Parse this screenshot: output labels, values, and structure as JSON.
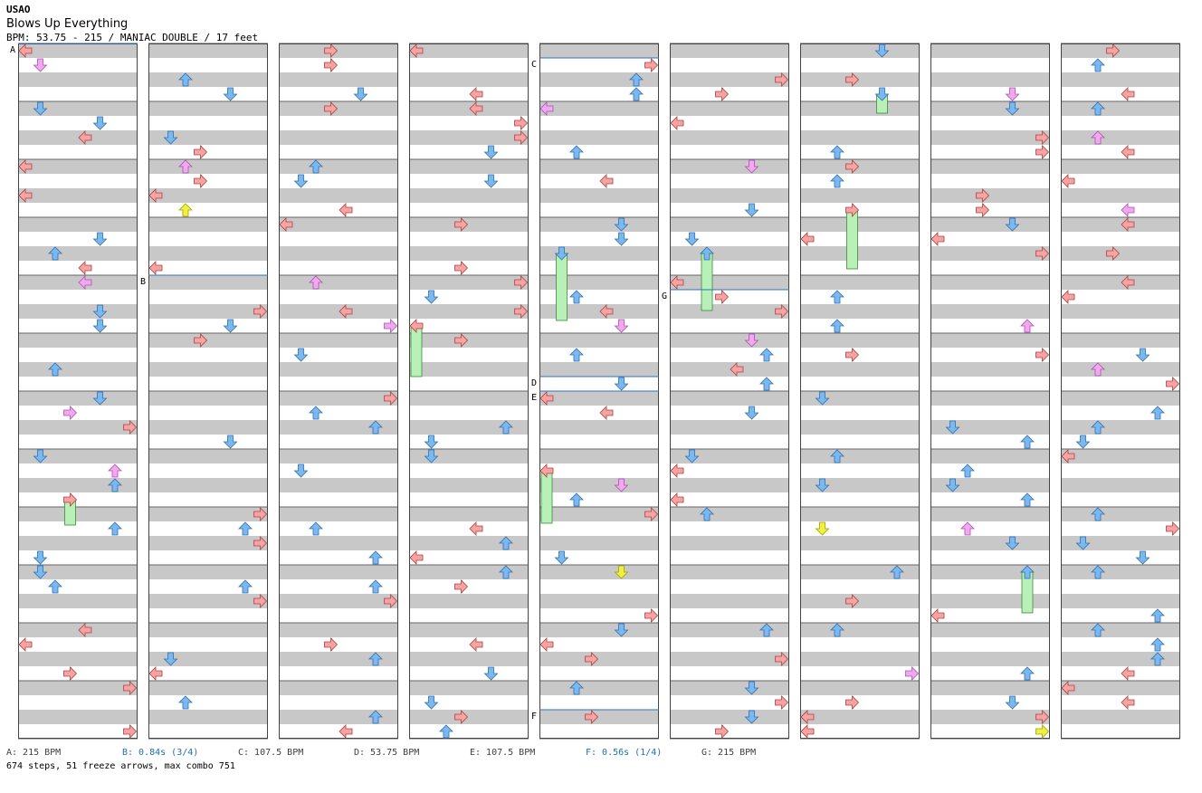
{
  "song": {
    "artist": "USAO",
    "title": "Blows Up Everything",
    "meta": "BPM: 53.75 - 215 / MANIAC DOUBLE / 17 feet"
  },
  "chart": {
    "columns": 9,
    "lanes": 8,
    "colors": {
      "stripe": "#c8c8c8",
      "left_right_arrow": "#f5a3a3",
      "up_down_arrow": "#7ab8f0",
      "pink_arrow": "#f0a8f0",
      "yellow_arrow": "#f0f040",
      "freeze": "#b8f0b8",
      "marker_line": "#2d72c8"
    },
    "section_markers": [
      {
        "label": "A",
        "column": 0,
        "beat": 0
      },
      {
        "label": "B",
        "column": 1,
        "beat": 16
      },
      {
        "label": "C",
        "column": 4,
        "beat": 1
      },
      {
        "label": "D",
        "column": 4,
        "beat": 23
      },
      {
        "label": "E",
        "column": 4,
        "beat": 24
      },
      {
        "label": "F",
        "column": 4,
        "beat": 46
      },
      {
        "label": "G",
        "column": 5,
        "beat": 17
      }
    ]
  },
  "legend": [
    {
      "text": "A: 215 BPM",
      "color": "#404040"
    },
    {
      "text": "B: 0.84s (3/4)",
      "color": "#2070b0"
    },
    {
      "text": "C: 107.5 BPM",
      "color": "#404040"
    },
    {
      "text": "D: 53.75 BPM",
      "color": "#404040"
    },
    {
      "text": "E: 107.5 BPM",
      "color": "#404040"
    },
    {
      "text": "F: 0.56s (1/4)",
      "color": "#2070b0"
    },
    {
      "text": "G: 215 BPM",
      "color": "#404040"
    }
  ],
  "footer": "674 steps, 51 freeze arrows, max combo 751"
}
